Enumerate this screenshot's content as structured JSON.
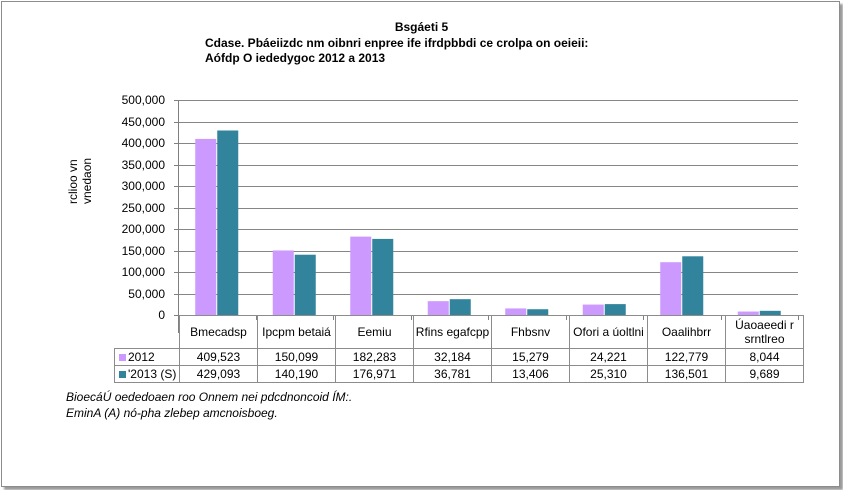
{
  "chart_data": {
    "type": "bar",
    "title": "Bsgáeti  5",
    "subtitle_lines": [
      "Cdase. Pbáeiizdc nm oibnri enpree ife ifrdpbbdi ce crolpa on oeieii:",
      "Aófdp O iededygoc 2012 a 2013"
    ],
    "ylabel_lines": [
      "rclioo vn",
      "vnedaon"
    ],
    "ylim": [
      0,
      500000
    ],
    "yticks": [
      0,
      50000,
      100000,
      150000,
      200000,
      250000,
      300000,
      350000,
      400000,
      450000,
      500000
    ],
    "ytick_labels": [
      "0",
      "50,000",
      "100,000",
      "150,000",
      "200,000",
      "250,000",
      "300,000",
      "350,000",
      "400,000",
      "450,000",
      "500,000"
    ],
    "grid": true,
    "categories": [
      "Bmecadsp",
      "Ipcpm betaiá",
      "Eemiu",
      "Rfins egafcpp",
      "Fhbsnv",
      "Ofori a úoltlni",
      "Oaalihbrr",
      "Úaoaeedi r srntlreo"
    ],
    "series": [
      {
        "name": "2012",
        "color": "#cc99ff",
        "values": [
          409523,
          150099,
          182283,
          32184,
          15279,
          24221,
          122779,
          8044
        ],
        "labels": [
          "409,523",
          "150,099",
          "182,283",
          "32,184",
          "15,279",
          "24,221",
          "122,779",
          "8,044"
        ]
      },
      {
        "name": "'2013 (S)",
        "color": "#31849b",
        "values": [
          429093,
          140190,
          176971,
          36781,
          13406,
          25310,
          136501,
          9689
        ],
        "labels": [
          "429,093",
          "140,190",
          "176,971",
          "36,781",
          "13,406",
          "25,310",
          "136,501",
          "9,689"
        ]
      }
    ],
    "legend": "data-table"
  },
  "notes": [
    "BioecáÚ oededoaen  roo Onnem nei pdcdnoncoid  ÍM:.",
    "EminA (A) nó-pha zlebep amcnoisboeg."
  ]
}
